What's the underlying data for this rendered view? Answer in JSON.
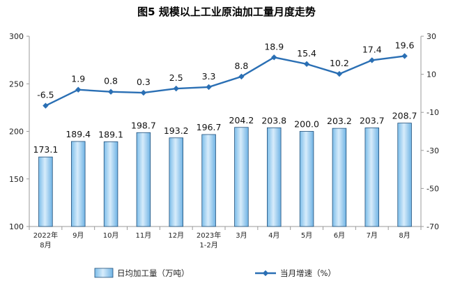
{
  "chart_data": {
    "type": "bar+line",
    "title": "图5  规模以上工业原油加工量月度走势",
    "categories": [
      [
        "2022年",
        "8月"
      ],
      [
        "9月"
      ],
      [
        "10月"
      ],
      [
        "11月"
      ],
      [
        "12月"
      ],
      [
        "2023年",
        "1-2月"
      ],
      [
        "3月"
      ],
      [
        "4月"
      ],
      [
        "5月"
      ],
      [
        "6月"
      ],
      [
        "7月"
      ],
      [
        "8月"
      ]
    ],
    "bar_series": {
      "name": "日均加工量（万吨）",
      "axis": "left",
      "values": [
        173.1,
        189.4,
        189.1,
        198.7,
        193.2,
        196.7,
        204.2,
        203.8,
        200.0,
        203.2,
        203.7,
        208.7
      ],
      "labels": [
        "173.1",
        "189.4",
        "189.1",
        "198.7",
        "193.2",
        "196.7",
        "204.2",
        "203.8",
        "200.0",
        "203.2",
        "203.7",
        "208.7"
      ]
    },
    "line_series": {
      "name": "当月增速（%）",
      "axis": "right",
      "values": [
        -6.5,
        1.9,
        0.8,
        0.3,
        2.5,
        3.3,
        8.8,
        18.9,
        15.4,
        10.2,
        17.4,
        19.6
      ],
      "labels": [
        "-6.5",
        "1.9",
        "0.8",
        "0.3",
        "2.5",
        "3.3",
        "8.8",
        "18.9",
        "15.4",
        "10.2",
        "17.4",
        "19.6"
      ]
    },
    "y_left": {
      "min": 100,
      "max": 300,
      "ticks": [
        "100",
        "150",
        "200",
        "250",
        "300"
      ]
    },
    "y_right": {
      "min": -70,
      "max": 30,
      "ticks": [
        "-70",
        "-50",
        "-30",
        "-10",
        "10",
        "30"
      ]
    },
    "grid": false,
    "legend_position": "bottom",
    "colors": {
      "bar_fill_top": "#dbeefb",
      "bar_fill_bottom": "#6fb6e8",
      "bar_stroke": "#1f4e79",
      "line": "#2a6fb4",
      "axis": "#9a9a9a"
    }
  }
}
